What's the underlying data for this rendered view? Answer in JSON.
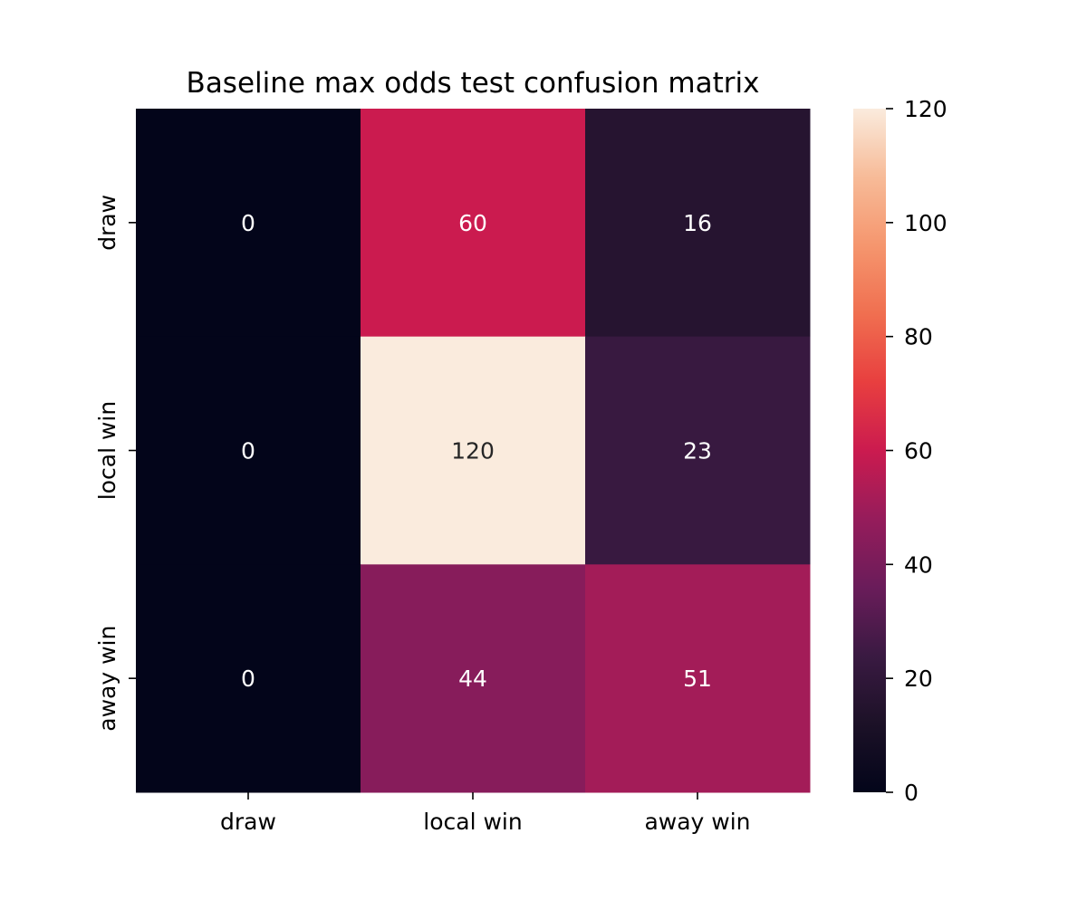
{
  "chart_data": {
    "type": "heatmap",
    "title": "Baseline max odds test confusion matrix",
    "xlabel": "",
    "ylabel": "",
    "x_categories": [
      "draw",
      "local win",
      "away win"
    ],
    "y_categories": [
      "draw",
      "local win",
      "away win"
    ],
    "values": [
      [
        0,
        60,
        16
      ],
      [
        0,
        120,
        23
      ],
      [
        0,
        44,
        51
      ]
    ],
    "colorbar": {
      "min": 0,
      "max": 120,
      "ticks": [
        "0",
        "20",
        "40",
        "60",
        "80",
        "100",
        "120"
      ],
      "colormap": "rocket"
    },
    "annotation_colors": {
      "on_dark": "#ffffff",
      "on_light": "#262626"
    }
  }
}
